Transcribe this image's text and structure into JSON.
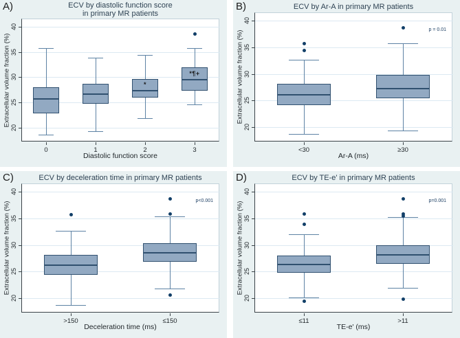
{
  "figure": {
    "colors": {
      "panel_bg": "#e9f1f2",
      "plot_bg": "#ffffff",
      "plot_border": "#c2d2da",
      "axis_line": "#3a4247",
      "grid": "#dce9f2",
      "box_fill": "#92a9c2",
      "box_border": "#30506f",
      "whisker": "#5d82a4",
      "outlier": "#123f68",
      "title": "#2e4253",
      "letter": "#1c1c1c",
      "tick_text": "#21272b",
      "p_text": "#1c3e63",
      "marker_text": "#1a1a1a"
    }
  },
  "chart_data": [
    {
      "type": "box",
      "letter": "A)",
      "title_lines": [
        "ECV by diastolic function score",
        "in primary MR patients"
      ],
      "xlabel": "Diastolic function score",
      "ylabel": "Extracellular volume fraction (%)",
      "yticks": [
        20,
        25,
        30,
        35,
        40
      ],
      "ylim": [
        17.3,
        41.6
      ],
      "grid": true,
      "legend": "none",
      "categories": [
        "0",
        "1",
        "2",
        "3"
      ],
      "p_label": "",
      "boxes": [
        {
          "low": 18.7,
          "q1": 22.8,
          "median": 25.7,
          "q3": 28.0,
          "high": 35.8,
          "outliers": []
        },
        {
          "low": 19.4,
          "q1": 24.8,
          "median": 26.7,
          "q3": 28.7,
          "high": 33.9,
          "outliers": []
        },
        {
          "low": 21.9,
          "q1": 26.0,
          "median": 27.3,
          "q3": 29.6,
          "high": 34.4,
          "outliers": [],
          "marker": {
            "text": "*",
            "value": 28.6
          }
        },
        {
          "low": 24.6,
          "q1": 27.4,
          "median": 29.5,
          "q3": 31.9,
          "high": 35.8,
          "outliers": [
            38.6
          ],
          "marker": {
            "text": "*¶+",
            "value": 30.8
          }
        }
      ]
    },
    {
      "type": "box",
      "letter": "B)",
      "title_lines": [
        "ECV by Ar-A in primary MR patients"
      ],
      "xlabel": "Ar-A (ms)",
      "ylabel": "Extracellular volume fraction (%)",
      "yticks": [
        20,
        25,
        30,
        35,
        40
      ],
      "ylim": [
        17.3,
        41.6
      ],
      "grid": true,
      "legend": "none",
      "categories": [
        "<30",
        "≥30"
      ],
      "p_label": "p = 0.01",
      "boxes": [
        {
          "low": 18.7,
          "q1": 24.2,
          "median": 26.1,
          "q3": 28.2,
          "high": 32.7,
          "outliers": [
            34.4,
            35.7
          ]
        },
        {
          "low": 19.4,
          "q1": 25.5,
          "median": 27.3,
          "q3": 29.9,
          "high": 35.8,
          "outliers": [
            38.7
          ]
        }
      ]
    },
    {
      "type": "box",
      "letter": "C)",
      "title_lines": [
        "ECV by deceleration time in primary MR patients"
      ],
      "xlabel": "Deceleration time (ms)",
      "ylabel": "Extracellular volume fraction (%)",
      "yticks": [
        20,
        25,
        30,
        35,
        40
      ],
      "ylim": [
        17.3,
        41.6
      ],
      "grid": true,
      "legend": "none",
      "categories": [
        ">150",
        "≤150"
      ],
      "p_label": "p<0.001",
      "boxes": [
        {
          "low": 18.7,
          "q1": 24.4,
          "median": 26.2,
          "q3": 28.1,
          "high": 32.7,
          "outliers": [
            35.7
          ]
        },
        {
          "low": 21.8,
          "q1": 26.9,
          "median": 28.5,
          "q3": 30.4,
          "high": 35.4,
          "outliers": [
            20.6,
            35.8,
            38.7
          ]
        }
      ]
    },
    {
      "type": "box",
      "letter": "D)",
      "title_lines": [
        "ECV by TE-e' in primary MR patients"
      ],
      "xlabel": "TE-e' (ms)",
      "ylabel": "Extracellular volume fraction (%)",
      "yticks": [
        20,
        25,
        30,
        35,
        40
      ],
      "ylim": [
        17.3,
        41.6
      ],
      "grid": true,
      "legend": "none",
      "categories": [
        "≤11",
        ">11"
      ],
      "p_label": "p=0.001",
      "boxes": [
        {
          "low": 20.2,
          "q1": 24.8,
          "median": 26.3,
          "q3": 28.0,
          "high": 32.0,
          "outliers": [
            19.4,
            33.9,
            35.8
          ]
        },
        {
          "low": 22.0,
          "q1": 26.5,
          "median": 28.2,
          "q3": 30.0,
          "high": 35.3,
          "outliers": [
            19.8,
            35.5,
            35.8,
            38.7
          ]
        }
      ]
    }
  ]
}
